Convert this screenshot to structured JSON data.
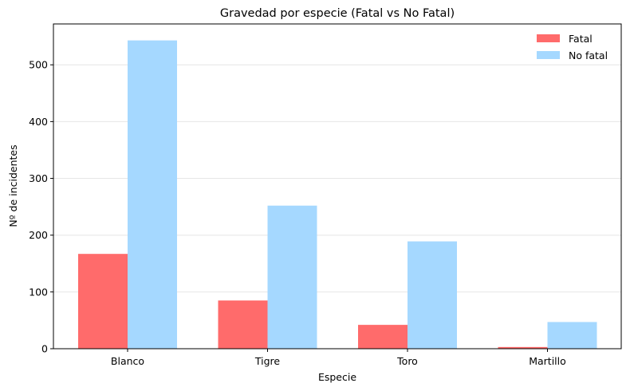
{
  "chart_data": {
    "type": "bar",
    "title": "Gravedad por especie (Fatal vs No Fatal)",
    "xlabel": "Especie",
    "ylabel": "Nº de incidentes",
    "categories": [
      "Blanco",
      "Tigre",
      "Toro",
      "Martillo"
    ],
    "series": [
      {
        "name": "Fatal",
        "values": [
          167,
          85,
          42,
          3
        ],
        "color": "#ff6b6b"
      },
      {
        "name": "No fatal",
        "values": [
          543,
          252,
          189,
          47
        ],
        "color": "#a5d8ff"
      }
    ],
    "ylim": [
      0,
      572
    ],
    "yticks": [
      0,
      100,
      200,
      300,
      400,
      500
    ],
    "grid": "y",
    "legend": "top-right"
  }
}
